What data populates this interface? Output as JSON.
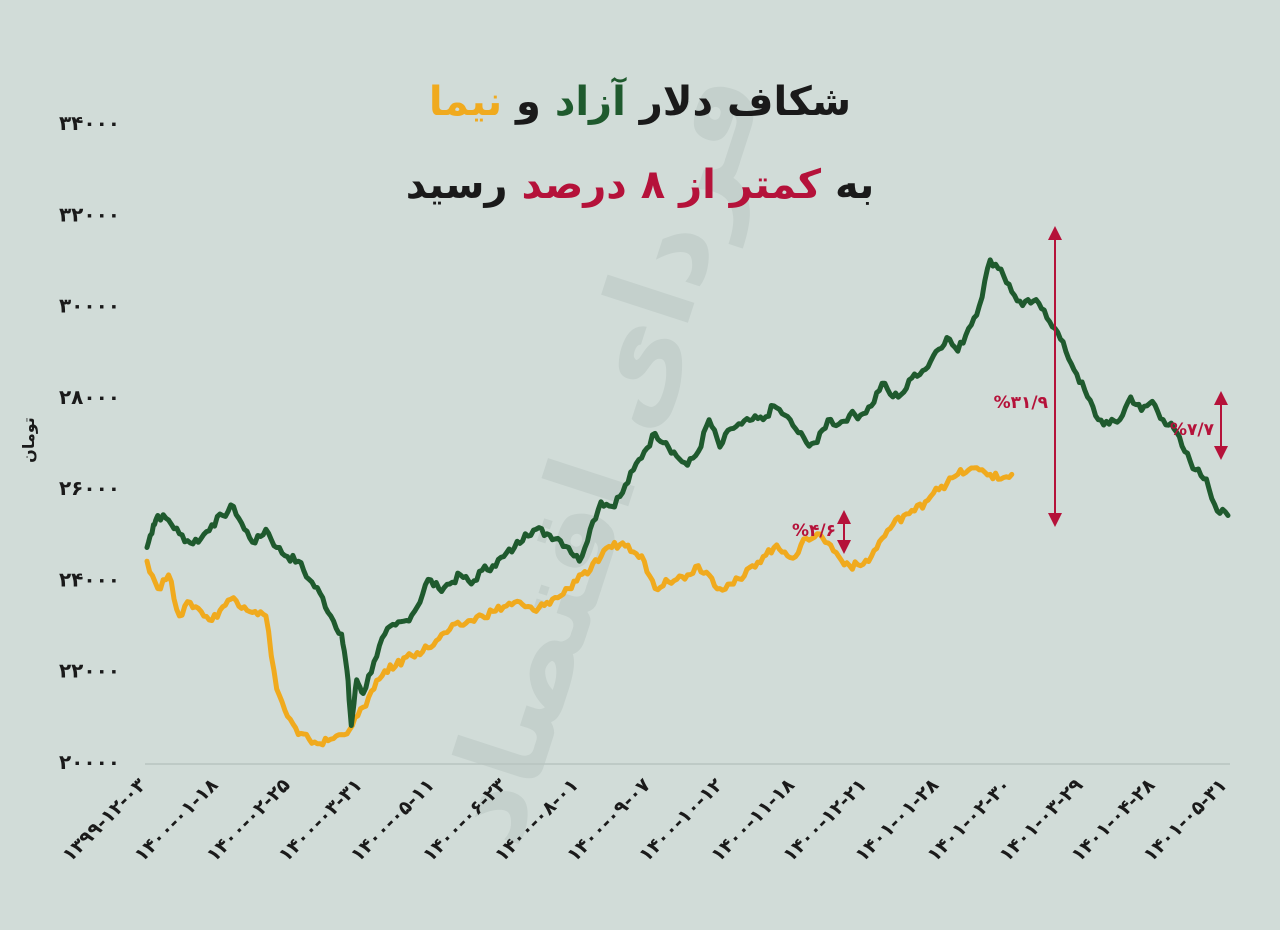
{
  "title": {
    "line1": {
      "part1": "شکاف دلار ",
      "part2": "آزاد",
      "part3": " و ",
      "part4": "نیما"
    },
    "line2": {
      "part1": "به ",
      "part2": "کمتر از ۸ درصد",
      "part3": " رسید"
    }
  },
  "watermark": "فردای اقتصاد",
  "colors": {
    "free": "#1f5a2e",
    "nima": "#f0aa1e",
    "accent": "#b5123a",
    "text": "#1a1a1a",
    "background": "#d1dcd8"
  },
  "chart_data": {
    "type": "line",
    "ylabel": "تومان",
    "xlabel": "",
    "ylim": [
      20000,
      34000
    ],
    "yticks": [
      "۲۰۰۰۰",
      "۲۲۰۰۰",
      "۲۴۰۰۰",
      "۲۶۰۰۰",
      "۲۸۰۰۰",
      "۳۰۰۰۰",
      "۳۲۰۰۰",
      "۳۴۰۰۰"
    ],
    "ytick_values": [
      20000,
      22000,
      24000,
      26000,
      28000,
      30000,
      32000,
      34000
    ],
    "xticks": [
      "۱۳۹۹-۱۲-۰۳",
      "۱۴۰۰-۰۱-۱۸",
      "۱۴۰۰-۰۲-۲۵",
      "۱۴۰۰-۰۳-۳۱",
      "۱۴۰۰-۰۵-۱۱",
      "۱۴۰۰-۰۶-۲۳",
      "۱۴۰۰-۰۸-۰۱",
      "۱۴۰۰-۰۹-۰۷",
      "۱۴۰۰-۱۰-۱۲",
      "۱۴۰۰-۱۱-۱۸",
      "۱۴۰۰-۱۲-۲۱",
      "۱۴۰۱-۰۱-۲۸",
      "۱۴۰۱-۰۲-۳۰",
      "۱۴۰۱-۰۳-۲۹",
      "۱۴۰۱-۰۴-۲۸",
      "۱۴۰۱-۰۵-۳۱"
    ],
    "x_domain": [
      0,
      100
    ],
    "grid": false,
    "series": [
      {
        "name": "آزاد",
        "color": "#1f5a2e",
        "points": [
          [
            0,
            24700
          ],
          [
            0.6,
            25200
          ],
          [
            1,
            25400
          ],
          [
            2,
            25300
          ],
          [
            3,
            25000
          ],
          [
            4,
            24800
          ],
          [
            5,
            24900
          ],
          [
            6,
            25200
          ],
          [
            7,
            25400
          ],
          [
            8,
            25600
          ],
          [
            9,
            25100
          ],
          [
            10,
            24800
          ],
          [
            11,
            25100
          ],
          [
            12,
            24700
          ],
          [
            13,
            24500
          ],
          [
            14,
            24400
          ],
          [
            15,
            24000
          ],
          [
            16,
            23700
          ],
          [
            17,
            23200
          ],
          [
            18,
            22800
          ],
          [
            18.5,
            22000
          ],
          [
            18.9,
            20800
          ],
          [
            19.4,
            21800
          ],
          [
            20,
            21500
          ],
          [
            21,
            22200
          ],
          [
            22,
            22800
          ],
          [
            23,
            23000
          ],
          [
            24,
            23100
          ],
          [
            25,
            23400
          ],
          [
            26,
            24000
          ],
          [
            27,
            23800
          ],
          [
            28,
            23900
          ],
          [
            29,
            24100
          ],
          [
            30,
            23900
          ],
          [
            31,
            24200
          ],
          [
            32,
            24300
          ],
          [
            33,
            24500
          ],
          [
            34,
            24700
          ],
          [
            35,
            25000
          ],
          [
            36,
            25100
          ],
          [
            37,
            25000
          ],
          [
            38,
            24900
          ],
          [
            39,
            24700
          ],
          [
            40,
            24400
          ],
          [
            41,
            25100
          ],
          [
            42,
            25700
          ],
          [
            43,
            25600
          ],
          [
            44,
            25900
          ],
          [
            45,
            26400
          ],
          [
            46,
            26800
          ],
          [
            47,
            27200
          ],
          [
            48,
            27000
          ],
          [
            49,
            26700
          ],
          [
            50,
            26500
          ],
          [
            51,
            26800
          ],
          [
            52,
            27500
          ],
          [
            53,
            26900
          ],
          [
            54,
            27300
          ],
          [
            55,
            27400
          ],
          [
            56,
            27500
          ],
          [
            57,
            27500
          ],
          [
            58,
            27800
          ],
          [
            59,
            27600
          ],
          [
            60,
            27300
          ],
          [
            61,
            27000
          ],
          [
            62,
            27000
          ],
          [
            63,
            27500
          ],
          [
            64,
            27400
          ],
          [
            65,
            27600
          ],
          [
            66,
            27600
          ],
          [
            67,
            27800
          ],
          [
            68,
            28300
          ],
          [
            69,
            28000
          ],
          [
            70,
            28100
          ],
          [
            71,
            28500
          ],
          [
            72,
            28600
          ],
          [
            73,
            29000
          ],
          [
            74,
            29300
          ],
          [
            75,
            29000
          ],
          [
            76,
            29500
          ],
          [
            77,
            30000
          ],
          [
            78,
            31000
          ],
          [
            79,
            30800
          ],
          [
            80,
            30300
          ],
          [
            81,
            30000
          ],
          [
            82,
            30100
          ],
          [
            83,
            29900
          ],
          [
            84,
            29500
          ],
          [
            85,
            29000
          ],
          [
            86,
            28500
          ],
          [
            87,
            28000
          ],
          [
            88,
            27500
          ],
          [
            89,
            27400
          ],
          [
            90,
            27500
          ],
          [
            91,
            28000
          ],
          [
            92,
            27700
          ],
          [
            93,
            27900
          ],
          [
            94,
            27500
          ],
          [
            95,
            27300
          ],
          [
            96,
            26800
          ],
          [
            97,
            26400
          ],
          [
            98,
            26200
          ],
          [
            99,
            25500
          ],
          [
            100,
            25400
          ]
        ]
      },
      {
        "name": "نیما",
        "color": "#f0aa1e",
        "points": [
          [
            0,
            24400
          ],
          [
            1,
            23800
          ],
          [
            2,
            24100
          ],
          [
            3,
            23200
          ],
          [
            4,
            23500
          ],
          [
            5,
            23300
          ],
          [
            6,
            23100
          ],
          [
            7,
            23400
          ],
          [
            8,
            23600
          ],
          [
            9,
            23400
          ],
          [
            10,
            23300
          ],
          [
            11,
            23200
          ],
          [
            12,
            21600
          ],
          [
            13,
            21000
          ],
          [
            14,
            20600
          ],
          [
            15,
            20500
          ],
          [
            16,
            20400
          ],
          [
            17,
            20500
          ],
          [
            18,
            20600
          ],
          [
            19,
            20800
          ],
          [
            20,
            21200
          ],
          [
            21,
            21600
          ],
          [
            22,
            22000
          ],
          [
            23,
            22100
          ],
          [
            24,
            22300
          ],
          [
            25,
            22400
          ],
          [
            26,
            22500
          ],
          [
            27,
            22700
          ],
          [
            28,
            22900
          ],
          [
            29,
            23000
          ],
          [
            30,
            23100
          ],
          [
            31,
            23200
          ],
          [
            32,
            23300
          ],
          [
            33,
            23400
          ],
          [
            34,
            23500
          ],
          [
            35,
            23400
          ],
          [
            36,
            23300
          ],
          [
            37,
            23500
          ],
          [
            38,
            23600
          ],
          [
            39,
            23800
          ],
          [
            40,
            24100
          ],
          [
            41,
            24200
          ],
          [
            42,
            24500
          ],
          [
            43,
            24700
          ],
          [
            44,
            24800
          ],
          [
            45,
            24600
          ],
          [
            46,
            24400
          ],
          [
            47,
            23800
          ],
          [
            48,
            24000
          ],
          [
            49,
            24000
          ],
          [
            50,
            24100
          ],
          [
            51,
            24300
          ],
          [
            52,
            24100
          ],
          [
            53,
            23800
          ],
          [
            54,
            23900
          ],
          [
            55,
            24000
          ],
          [
            56,
            24300
          ],
          [
            57,
            24500
          ],
          [
            58,
            24700
          ],
          [
            59,
            24600
          ],
          [
            60,
            24500
          ],
          [
            61,
            24900
          ],
          [
            62,
            25000
          ],
          [
            63,
            24800
          ],
          [
            64,
            24500
          ],
          [
            65,
            24300
          ],
          [
            66,
            24300
          ],
          [
            67,
            24500
          ],
          [
            68,
            24900
          ],
          [
            69,
            25200
          ],
          [
            70,
            25400
          ],
          [
            71,
            25500
          ],
          [
            72,
            25700
          ],
          [
            73,
            26000
          ],
          [
            74,
            26100
          ],
          [
            75,
            26300
          ],
          [
            76,
            26400
          ],
          [
            77,
            26400
          ],
          [
            78,
            26300
          ],
          [
            79,
            26200
          ],
          [
            80,
            26300
          ]
        ]
      }
    ],
    "annotations": [
      {
        "label": "%۴/۶"
      },
      {
        "label": "%۳۱/۹"
      },
      {
        "label": "%۷/۷"
      }
    ]
  }
}
